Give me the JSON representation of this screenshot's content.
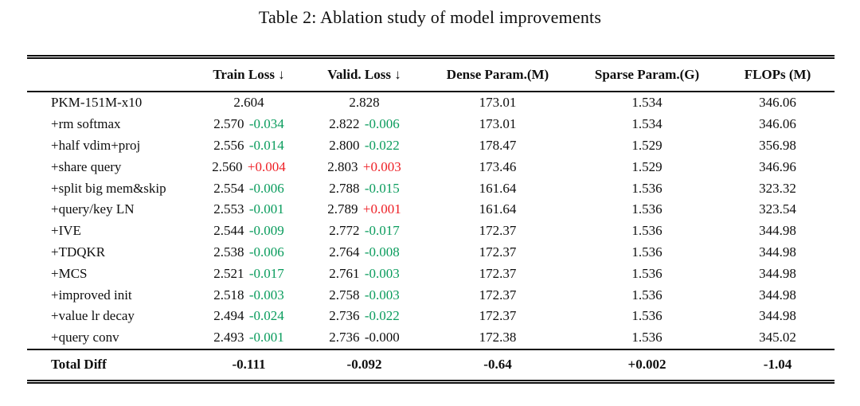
{
  "caption": "Table 2: Ablation study of model improvements",
  "colors": {
    "green": "#0a9c5d",
    "red": "#ee2026",
    "ink": "#0e0e0e"
  },
  "chart_data": {
    "type": "table",
    "title": "Table 2: Ablation study of model improvements",
    "columns": [
      "",
      "Train Loss ↓",
      "Valid. Loss ↓",
      "Dense Param.(M)",
      "Sparse Param.(G)",
      "FLOPs (M)"
    ]
  },
  "table": {
    "columns": {
      "method": "",
      "train": "Train Loss ↓",
      "valid": "Valid. Loss ↓",
      "dense": "Dense Param.(M)",
      "sparse": "Sparse Param.(G)",
      "flops": "FLOPs (M)"
    },
    "rows": [
      {
        "method": "PKM-151M-x10",
        "train": "2.604",
        "train_diff": "",
        "train_diff_color": "",
        "valid": "2.828",
        "valid_diff": "",
        "valid_diff_color": "",
        "dense": "173.01",
        "sparse": "1.534",
        "flops": "346.06"
      },
      {
        "method": "+rm softmax",
        "train": "2.570",
        "train_diff": "-0.034",
        "train_diff_color": "green",
        "valid": "2.822",
        "valid_diff": "-0.006",
        "valid_diff_color": "green",
        "dense": "173.01",
        "sparse": "1.534",
        "flops": "346.06"
      },
      {
        "method": "+half vdim+proj",
        "train": "2.556",
        "train_diff": "-0.014",
        "train_diff_color": "green",
        "valid": "2.800",
        "valid_diff": "-0.022",
        "valid_diff_color": "green",
        "dense": "178.47",
        "sparse": "1.529",
        "flops": "356.98"
      },
      {
        "method": "+share query",
        "train": "2.560",
        "train_diff": "+0.004",
        "train_diff_color": "red",
        "valid": "2.803",
        "valid_diff": "+0.003",
        "valid_diff_color": "red",
        "dense": "173.46",
        "sparse": "1.529",
        "flops": "346.96"
      },
      {
        "method": "+split big mem&skip",
        "train": "2.554",
        "train_diff": "-0.006",
        "train_diff_color": "green",
        "valid": "2.788",
        "valid_diff": "-0.015",
        "valid_diff_color": "green",
        "dense": "161.64",
        "sparse": "1.536",
        "flops": "323.32"
      },
      {
        "method": "+query/key LN",
        "train": "2.553",
        "train_diff": "-0.001",
        "train_diff_color": "green",
        "valid": "2.789",
        "valid_diff": "+0.001",
        "valid_diff_color": "red",
        "dense": "161.64",
        "sparse": "1.536",
        "flops": "323.54"
      },
      {
        "method": "+IVE",
        "train": "2.544",
        "train_diff": "-0.009",
        "train_diff_color": "green",
        "valid": "2.772",
        "valid_diff": "-0.017",
        "valid_diff_color": "green",
        "dense": "172.37",
        "sparse": "1.536",
        "flops": "344.98"
      },
      {
        "method": "+TDQKR",
        "train": "2.538",
        "train_diff": "-0.006",
        "train_diff_color": "green",
        "valid": "2.764",
        "valid_diff": "-0.008",
        "valid_diff_color": "green",
        "dense": "172.37",
        "sparse": "1.536",
        "flops": "344.98"
      },
      {
        "method": "+MCS",
        "train": "2.521",
        "train_diff": "-0.017",
        "train_diff_color": "green",
        "valid": "2.761",
        "valid_diff": "-0.003",
        "valid_diff_color": "green",
        "dense": "172.37",
        "sparse": "1.536",
        "flops": "344.98"
      },
      {
        "method": "+improved init",
        "train": "2.518",
        "train_diff": "-0.003",
        "train_diff_color": "green",
        "valid": "2.758",
        "valid_diff": "-0.003",
        "valid_diff_color": "green",
        "dense": "172.37",
        "sparse": "1.536",
        "flops": "344.98"
      },
      {
        "method": "+value lr decay",
        "train": "2.494",
        "train_diff": "-0.024",
        "train_diff_color": "green",
        "valid": "2.736",
        "valid_diff": "-0.022",
        "valid_diff_color": "green",
        "dense": "172.37",
        "sparse": "1.536",
        "flops": "344.98"
      },
      {
        "method": "+query conv",
        "train": "2.493",
        "train_diff": "-0.001",
        "train_diff_color": "green",
        "valid": "2.736",
        "valid_diff": "-0.000",
        "valid_diff_color": "black",
        "dense": "172.38",
        "sparse": "1.536",
        "flops": "345.02"
      }
    ],
    "footer": {
      "label": "Total Diff",
      "train": "-0.111",
      "valid": "-0.092",
      "dense": "-0.64",
      "sparse": "+0.002",
      "flops": "-1.04"
    }
  }
}
